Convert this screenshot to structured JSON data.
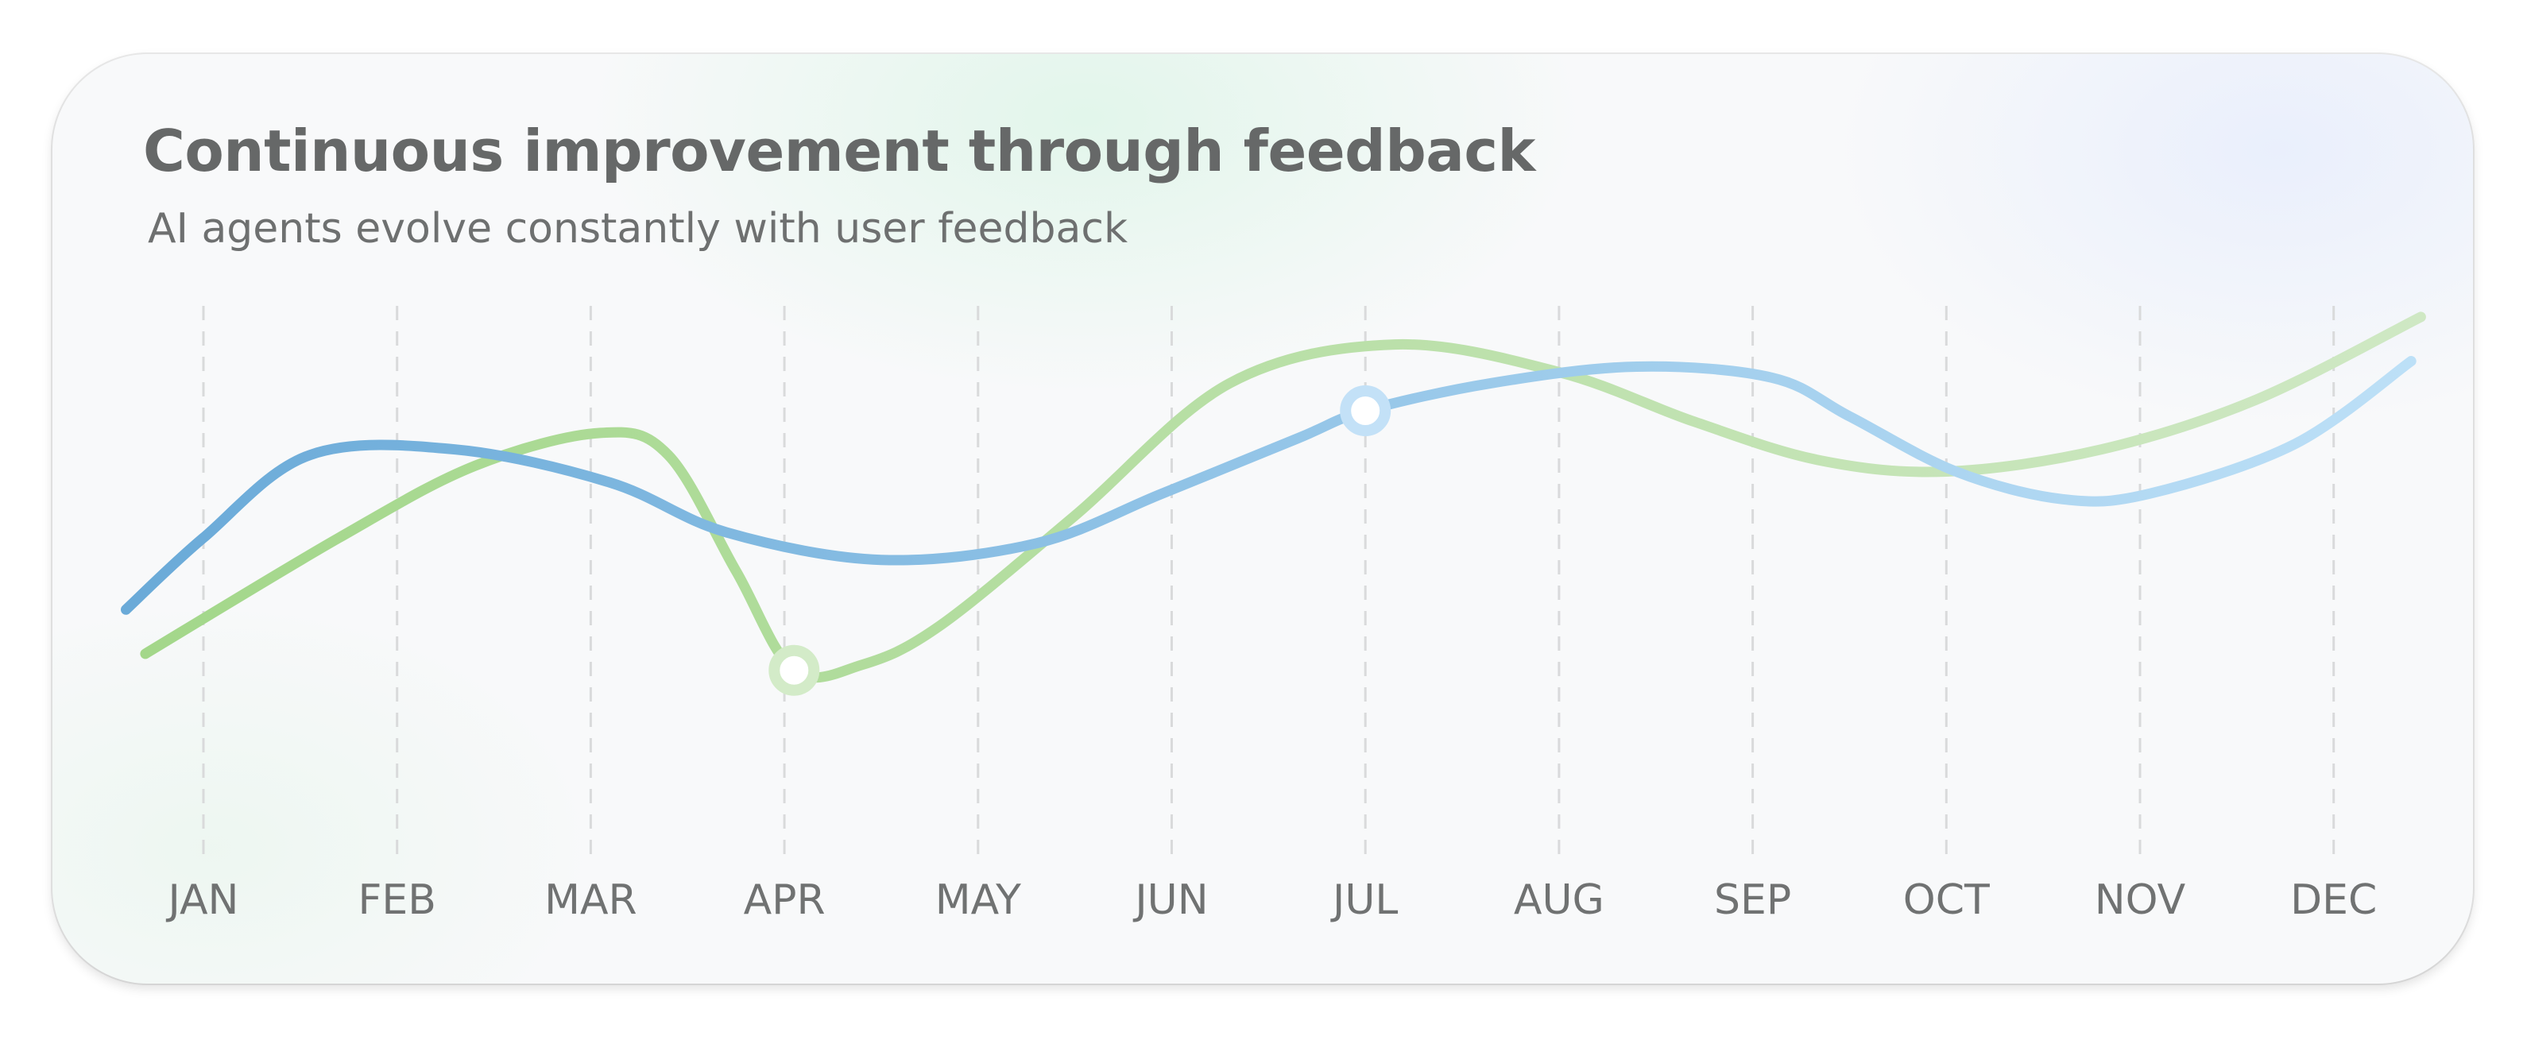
{
  "header": {
    "title": "Continuous improvement through feedback",
    "subtitle": "AI agents evolve constantly with user feedback"
  },
  "chart_data": {
    "type": "line",
    "title": "Continuous improvement through feedback",
    "subtitle": "AI agents evolve constantly with user feedback",
    "categories": [
      "JAN",
      "FEB",
      "MAR",
      "APR",
      "MAY",
      "JUN",
      "JUL",
      "AUG",
      "SEP",
      "OCT",
      "NOV",
      "DEC"
    ],
    "ylim": [
      0,
      100
    ],
    "grid": "vertical-dashed",
    "legend": "none",
    "series": [
      {
        "name": "blue",
        "color_start": "#6aaad8",
        "color_end": "#bde0f7",
        "x": [
          -0.4,
          0.0,
          0.55,
          1.3,
          2.1,
          2.7,
          3.5,
          4.3,
          4.95,
          5.65,
          6.0,
          6.65,
          7.4,
          8.1,
          8.5,
          9.05,
          9.6,
          10.05,
          10.8,
          11.4
        ],
        "values": [
          45,
          58,
          73,
          74,
          68,
          59,
          54,
          57,
          66,
          76,
          81,
          86,
          89,
          87,
          80,
          70,
          65,
          66,
          75,
          90
        ],
        "marker_index": 10
      },
      {
        "name": "green",
        "color_start": "#a3d78a",
        "color_end": "#cfe8c4",
        "x": [
          -0.3,
          0.7,
          1.4,
          2.05,
          2.4,
          2.75,
          3.05,
          3.4,
          3.8,
          4.5,
          5.3,
          6.15,
          7.0,
          7.7,
          8.35,
          9.0,
          9.8,
          10.6,
          11.45
        ],
        "values": [
          37,
          58,
          71,
          77,
          73,
          52,
          34,
          35,
          42,
          62,
          86,
          93,
          88,
          79,
          72,
          70,
          74,
          83,
          98
        ],
        "marker_index": 6
      }
    ]
  }
}
